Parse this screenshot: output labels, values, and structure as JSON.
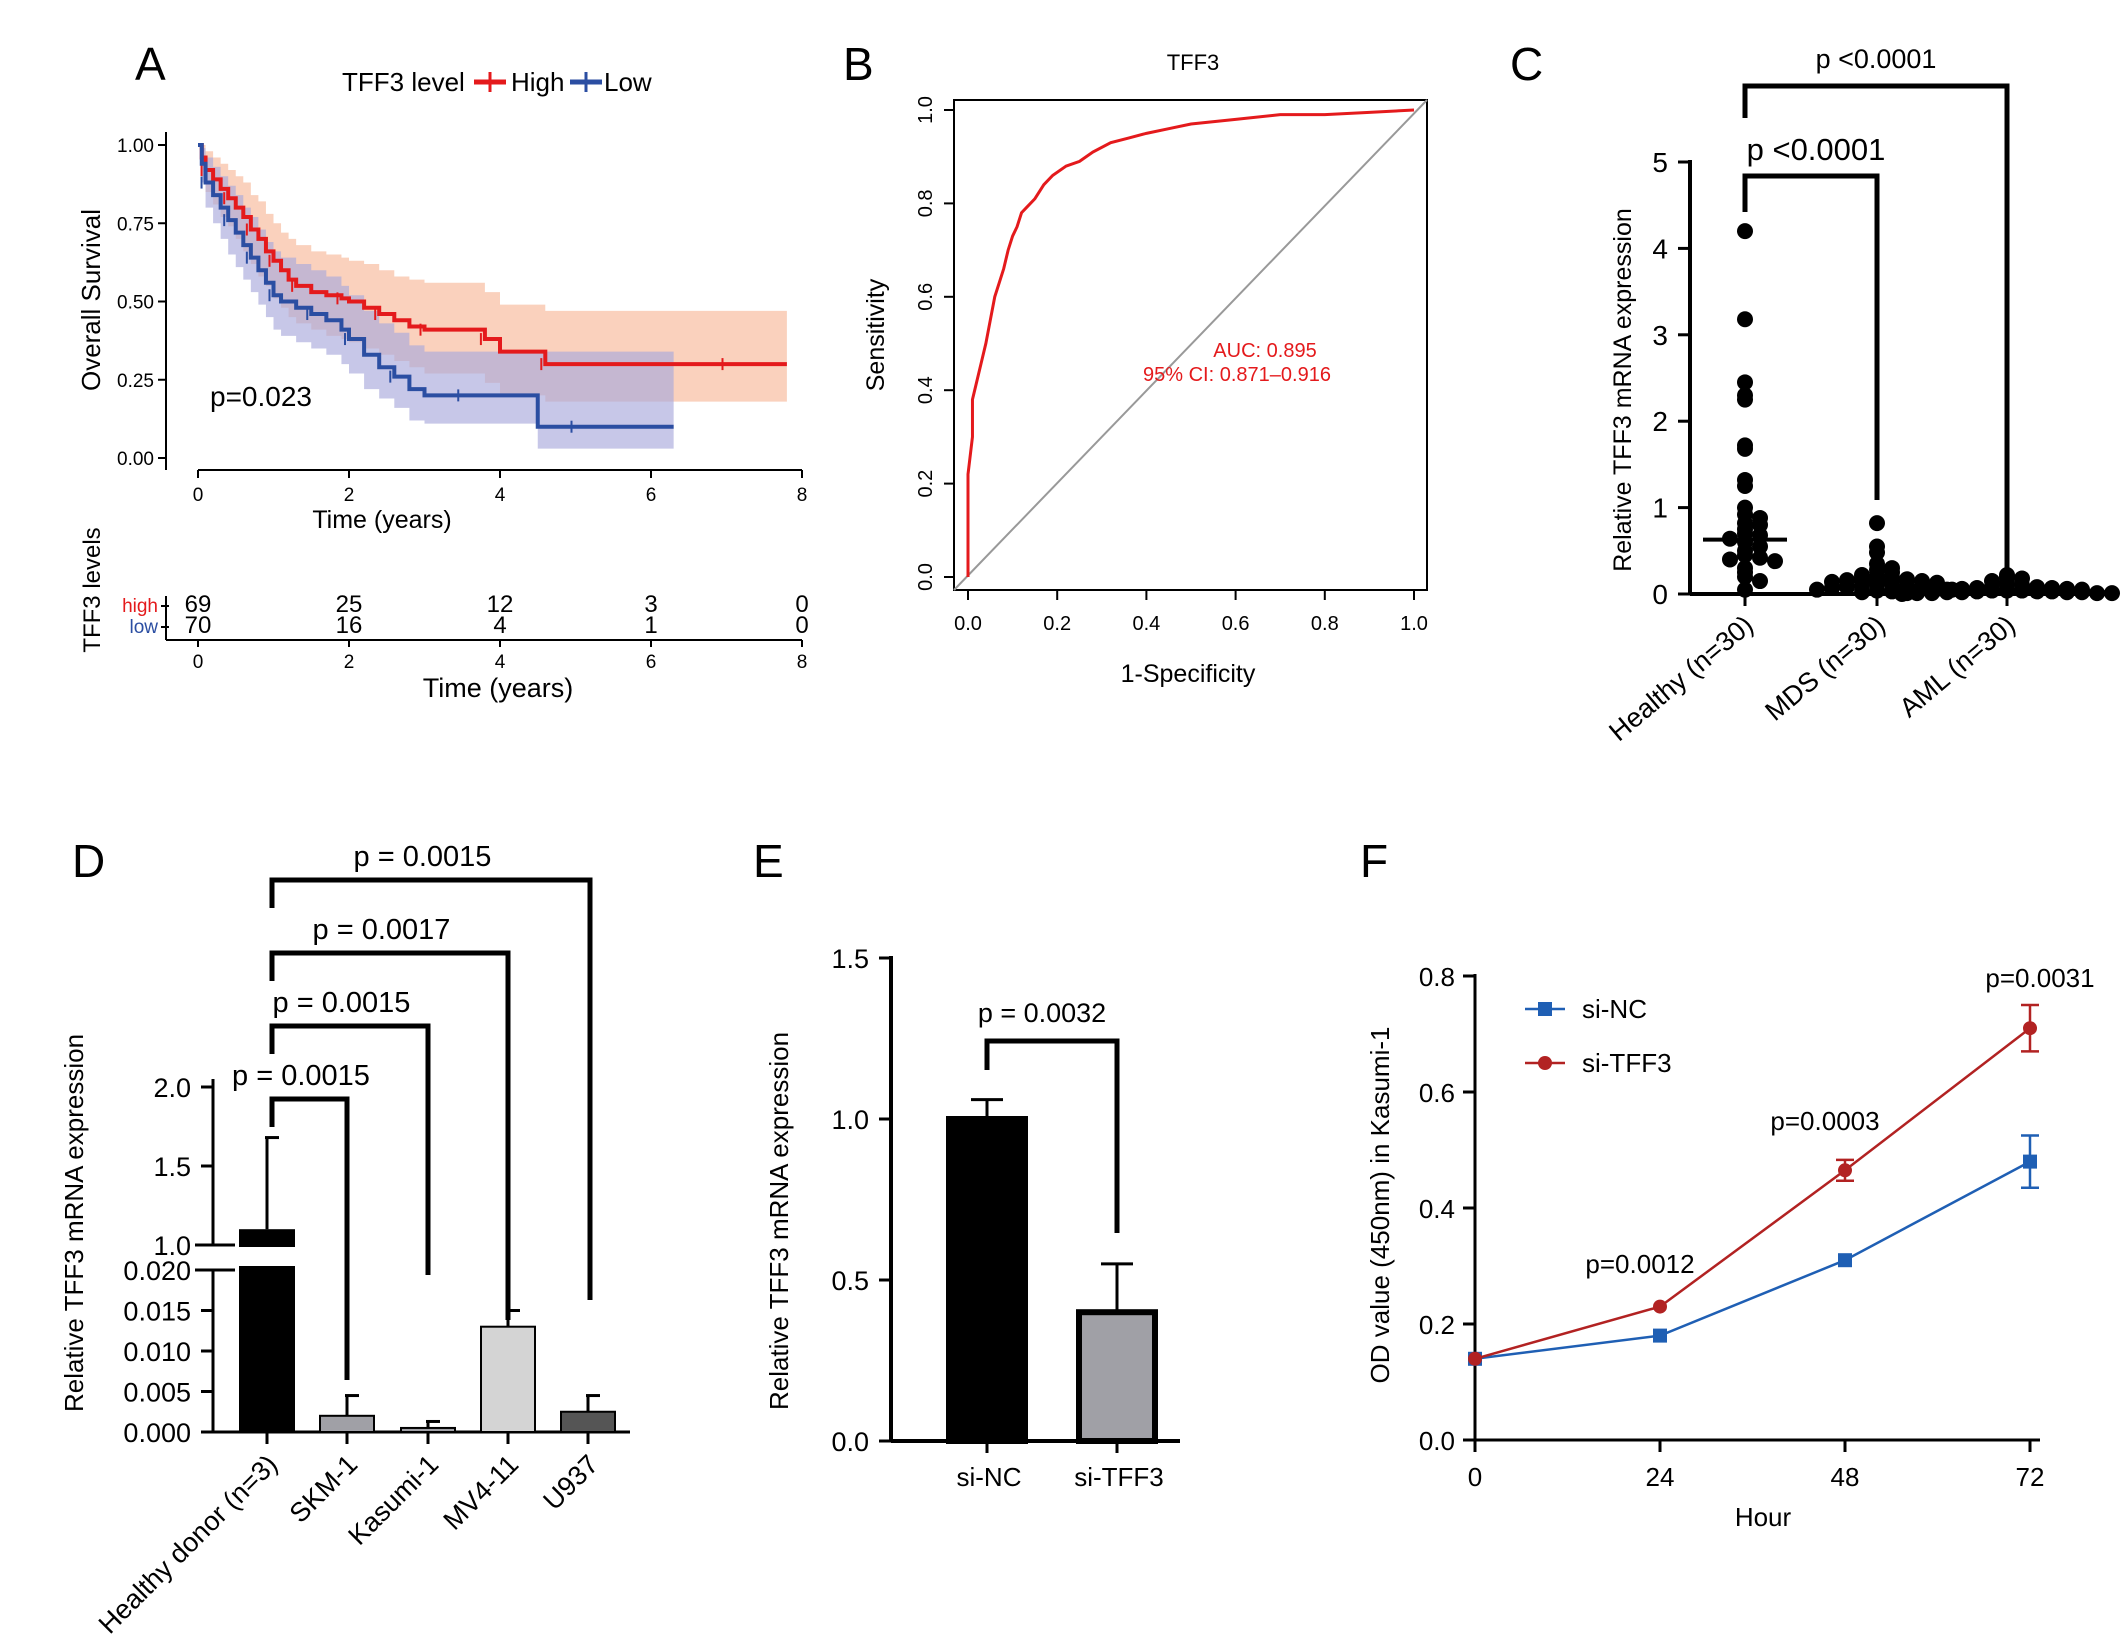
{
  "colors": {
    "high": "#e41a1c",
    "low": "#2b4ea2",
    "high_band": "#f7b89a",
    "low_band": "#a9a9dc",
    "roc": "#e41a1c",
    "black": "#000000",
    "gray_bar": "#a0a0a6",
    "light_bar": "#d4d4d4",
    "dark_bar": "#555555",
    "si_nc": "#1f5fb4",
    "si_tff3": "#b22222"
  },
  "chart_data": [
    {
      "panel": "A",
      "type": "line",
      "panel_label": "A",
      "legend_title": "TFF3 level",
      "legend_placement": "top",
      "ylabel": "Overall Survival",
      "xlabel": "Time  (years)",
      "xlim": [
        0,
        8
      ],
      "ylim": [
        0,
        1
      ],
      "x_ticks": [
        "0",
        "2",
        "4",
        "6",
        "8"
      ],
      "y_ticks": [
        "0.00",
        "0.25",
        "0.50",
        "0.75",
        "1.00"
      ],
      "pvalue_text": "p=0.023",
      "series": [
        {
          "name": "High",
          "x": [
            0,
            0.05,
            0.1,
            0.2,
            0.3,
            0.4,
            0.5,
            0.6,
            0.7,
            0.8,
            0.9,
            1.0,
            1.1,
            1.2,
            1.3,
            1.5,
            1.7,
            1.9,
            2.0,
            2.2,
            2.4,
            2.6,
            2.8,
            3.0,
            3.2,
            3.5,
            3.8,
            4.0,
            4.2,
            4.6,
            5.0,
            6.0,
            7.0,
            7.8
          ],
          "y": [
            1.0,
            0.96,
            0.92,
            0.89,
            0.86,
            0.83,
            0.8,
            0.77,
            0.73,
            0.7,
            0.66,
            0.63,
            0.6,
            0.57,
            0.55,
            0.53,
            0.52,
            0.51,
            0.5,
            0.48,
            0.46,
            0.44,
            0.42,
            0.41,
            0.41,
            0.41,
            0.38,
            0.34,
            0.34,
            0.3,
            0.3,
            0.3,
            0.3,
            0.3
          ],
          "ci_low": [
            1.0,
            0.9,
            0.85,
            0.81,
            0.77,
            0.74,
            0.7,
            0.66,
            0.62,
            0.58,
            0.55,
            0.51,
            0.48,
            0.45,
            0.43,
            0.41,
            0.39,
            0.38,
            0.37,
            0.35,
            0.33,
            0.31,
            0.29,
            0.27,
            0.27,
            0.27,
            0.24,
            0.2,
            0.2,
            0.18,
            0.18,
            0.18,
            0.18,
            0.18
          ],
          "ci_high": [
            1.0,
            1.0,
            0.98,
            0.96,
            0.94,
            0.92,
            0.9,
            0.88,
            0.84,
            0.82,
            0.78,
            0.75,
            0.72,
            0.7,
            0.68,
            0.66,
            0.65,
            0.64,
            0.63,
            0.62,
            0.6,
            0.58,
            0.57,
            0.56,
            0.56,
            0.56,
            0.53,
            0.49,
            0.49,
            0.47,
            0.47,
            0.47,
            0.47,
            0.47
          ]
        },
        {
          "name": "Low",
          "x": [
            0,
            0.05,
            0.1,
            0.2,
            0.3,
            0.4,
            0.5,
            0.6,
            0.7,
            0.8,
            0.9,
            1.0,
            1.1,
            1.3,
            1.5,
            1.7,
            1.9,
            2.0,
            2.2,
            2.4,
            2.6,
            2.8,
            3.0,
            3.5,
            4.0,
            4.5,
            5.0,
            6.0,
            6.3
          ],
          "y": [
            1.0,
            0.94,
            0.88,
            0.84,
            0.8,
            0.76,
            0.72,
            0.68,
            0.64,
            0.6,
            0.56,
            0.52,
            0.5,
            0.48,
            0.46,
            0.44,
            0.41,
            0.38,
            0.33,
            0.29,
            0.26,
            0.22,
            0.2,
            0.2,
            0.2,
            0.1,
            0.1,
            0.1,
            0.1
          ],
          "ci_low": [
            1.0,
            0.88,
            0.8,
            0.75,
            0.7,
            0.65,
            0.61,
            0.57,
            0.53,
            0.49,
            0.45,
            0.41,
            0.39,
            0.37,
            0.35,
            0.33,
            0.3,
            0.27,
            0.22,
            0.19,
            0.16,
            0.12,
            0.11,
            0.11,
            0.11,
            0.03,
            0.03,
            0.03,
            0.03
          ],
          "ci_high": [
            1.0,
            0.99,
            0.96,
            0.93,
            0.9,
            0.87,
            0.84,
            0.8,
            0.77,
            0.73,
            0.69,
            0.66,
            0.64,
            0.62,
            0.6,
            0.58,
            0.55,
            0.52,
            0.47,
            0.43,
            0.4,
            0.36,
            0.34,
            0.34,
            0.34,
            0.34,
            0.34,
            0.34,
            0.34
          ]
        }
      ],
      "risk_table": {
        "ylabel": "TFF3 levels",
        "xlabel": "Time (years)",
        "x_ticks": [
          "0",
          "2",
          "4",
          "6",
          "8"
        ],
        "rows": [
          {
            "label": "high",
            "counts": [
              "69",
              "25",
              "12",
              "3",
              "0"
            ]
          },
          {
            "label": "low",
            "counts": [
              "70",
              "16",
              "4",
              "1",
              "0"
            ]
          }
        ]
      }
    },
    {
      "panel": "B",
      "type": "line",
      "panel_label": "B",
      "title": "TFF3",
      "xlabel": "1-Specificity",
      "ylabel": "Sensitivity",
      "xlim": [
        0,
        1
      ],
      "ylim": [
        0,
        1
      ],
      "x_ticks": [
        "0.0",
        "0.2",
        "0.4",
        "0.6",
        "0.8",
        "1.0"
      ],
      "y_ticks": [
        "0.0",
        "0.2",
        "0.4",
        "0.6",
        "0.8",
        "1.0"
      ],
      "auc_text": "AUC: 0.895",
      "ci_text": "95% CI: 0.871–0.916",
      "x": [
        0,
        0.0,
        0.01,
        0.01,
        0.02,
        0.03,
        0.04,
        0.05,
        0.06,
        0.07,
        0.08,
        0.09,
        0.1,
        0.11,
        0.12,
        0.13,
        0.15,
        0.17,
        0.19,
        0.22,
        0.25,
        0.28,
        0.32,
        0.36,
        0.4,
        0.45,
        0.5,
        0.6,
        0.7,
        0.8,
        0.9,
        1.0
      ],
      "y": [
        0,
        0.22,
        0.3,
        0.38,
        0.42,
        0.46,
        0.5,
        0.55,
        0.6,
        0.63,
        0.66,
        0.7,
        0.73,
        0.75,
        0.78,
        0.79,
        0.81,
        0.84,
        0.86,
        0.88,
        0.89,
        0.91,
        0.93,
        0.94,
        0.95,
        0.96,
        0.97,
        0.98,
        0.99,
        0.99,
        0.995,
        1.0
      ]
    },
    {
      "panel": "C",
      "type": "scatter",
      "panel_label": "C",
      "ylabel": "Relative TFF3 mRNA expression",
      "categories": [
        "Healthy (n=30)",
        "MDS (n=30)",
        "AML (n=30)"
      ],
      "ylim": [
        0,
        5
      ],
      "y_ticks": [
        "0",
        "1",
        "2",
        "3",
        "4",
        "5"
      ],
      "medians": [
        0.63,
        0.15,
        0.05
      ],
      "comparisons": [
        {
          "from": 0,
          "to": 2,
          "label": "p <0.0001"
        },
        {
          "from": 0,
          "to": 1,
          "label": "p <0.0001"
        }
      ],
      "points": [
        [
          4.2,
          3.18,
          2.45,
          2.3,
          2.25,
          1.72,
          1.68,
          1.32,
          1.25,
          1.0,
          0.92,
          0.88,
          0.82,
          0.8,
          0.75,
          0.7,
          0.68,
          0.64,
          0.6,
          0.55,
          0.5,
          0.45,
          0.42,
          0.4,
          0.38,
          0.3,
          0.25,
          0.2,
          0.15,
          0.05
        ],
        [
          0.82,
          0.55,
          0.48,
          0.35,
          0.3,
          0.28,
          0.25,
          0.22,
          0.2,
          0.19,
          0.18,
          0.17,
          0.16,
          0.15,
          0.14,
          0.13,
          0.12,
          0.11,
          0.1,
          0.09,
          0.08,
          0.08,
          0.07,
          0.06,
          0.05,
          0.05,
          0.04,
          0.03,
          0.02,
          0.01
        ],
        [
          0.22,
          0.2,
          0.18,
          0.15,
          0.12,
          0.1,
          0.09,
          0.08,
          0.07,
          0.07,
          0.06,
          0.06,
          0.05,
          0.05,
          0.05,
          0.04,
          0.04,
          0.04,
          0.03,
          0.03,
          0.03,
          0.02,
          0.02,
          0.02,
          0.02,
          0.01,
          0.01,
          0.01,
          0.01,
          0.0
        ]
      ]
    },
    {
      "panel": "D",
      "type": "bar",
      "panel_label": "D",
      "ylabel": "Relative TFF3 mRNA expression",
      "categories": [
        "Healthy donor (n=3)",
        "SKM-1",
        "Kasumi-1",
        "MV4-11",
        "U937"
      ],
      "values": [
        1.1,
        0.002,
        0.0005,
        0.013,
        0.0025
      ],
      "errors": [
        0.58,
        0.0025,
        0.0008,
        0.002,
        0.002
      ],
      "axis_break": {
        "lower": [
          0,
          0.02
        ],
        "upper": [
          1.0,
          2.0
        ]
      },
      "y_ticks_lower": [
        "0.000",
        "0.005",
        "0.010",
        "0.015",
        "0.020"
      ],
      "y_ticks_upper": [
        "1.0",
        "1.5",
        "2.0"
      ],
      "comparisons": [
        {
          "from": 0,
          "to": 4,
          "label": "p = 0.0015"
        },
        {
          "from": 0,
          "to": 3,
          "label": "p = 0.0017"
        },
        {
          "from": 0,
          "to": 2,
          "label": "p = 0.0015"
        },
        {
          "from": 0,
          "to": 1,
          "label": "p = 0.0015"
        }
      ]
    },
    {
      "panel": "E",
      "type": "bar",
      "panel_label": "E",
      "ylabel": "Relative TFF3 mRNA expression",
      "categories": [
        "si-NC",
        "si-TFF3"
      ],
      "values": [
        1.0,
        0.4
      ],
      "errors": [
        0.06,
        0.15
      ],
      "ylim": [
        0,
        1.5
      ],
      "y_ticks": [
        "0.0",
        "0.5",
        "1.0",
        "1.5"
      ],
      "comparisons": [
        {
          "from": 0,
          "to": 1,
          "label": "p = 0.0032"
        }
      ]
    },
    {
      "panel": "F",
      "type": "line",
      "panel_label": "F",
      "xlabel": "Hour",
      "ylabel": "OD value (450nm) in Kasumi-1",
      "x": [
        0,
        24,
        48,
        72
      ],
      "x_ticks": [
        "0",
        "24",
        "48",
        "72"
      ],
      "ylim": [
        0,
        0.8
      ],
      "y_ticks": [
        "0.0",
        "0.2",
        "0.4",
        "0.6",
        "0.8"
      ],
      "legend_placement": "top-left",
      "series": [
        {
          "name": "si-NC",
          "values": [
            0.14,
            0.18,
            0.31,
            0.48
          ],
          "errors": [
            0.005,
            0.005,
            0.008,
            0.045
          ]
        },
        {
          "name": "si-TFF3",
          "values": [
            0.14,
            0.23,
            0.465,
            0.71
          ],
          "errors": [
            0.005,
            0.005,
            0.018,
            0.04
          ]
        }
      ],
      "pvalues": [
        {
          "x": 24,
          "label": "p=0.0012"
        },
        {
          "x": 48,
          "label": "p=0.0003"
        },
        {
          "x": 72,
          "label": "p=0.0031"
        }
      ]
    }
  ]
}
